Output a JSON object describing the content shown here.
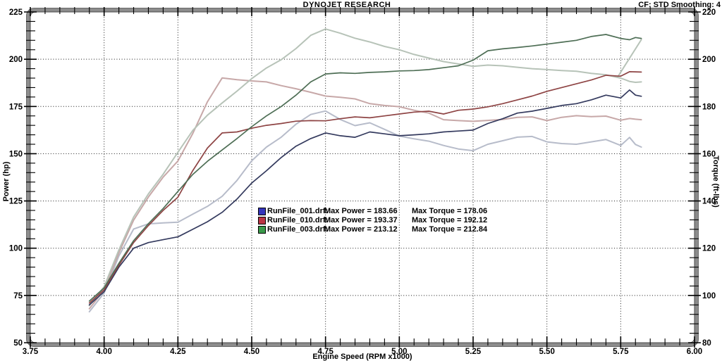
{
  "chart_data": {
    "type": "line",
    "title": "DYNOJET RESEARCH",
    "correction_label": "CF: STD  Smoothing: 4",
    "grid": "on",
    "legend_position": "inside-center",
    "x_axis": {
      "label": "Engine Speed (RPM x1000)",
      "min": 3.75,
      "max": 6.0,
      "minor_step": 0.05,
      "ticks": [
        3.75,
        4.0,
        4.25,
        4.5,
        4.75,
        5.0,
        5.25,
        5.5,
        5.75,
        6.0
      ],
      "tick_labels": [
        "3.75",
        "4.00",
        "4.25",
        "4.50",
        "4.75",
        "5.00",
        "5.25",
        "5.50",
        "5.75",
        "6.00"
      ]
    },
    "y_left": {
      "label": "Power (hp)",
      "min": 50,
      "max": 225,
      "minor_step": 5,
      "ticks": [
        225,
        200,
        175,
        150,
        125,
        100,
        75,
        50
      ],
      "tick_labels": [
        "225",
        "200",
        "175",
        "150",
        "125",
        "100",
        "75",
        "50"
      ]
    },
    "y_right": {
      "label": "Torque (ft-lbs)",
      "min": 80,
      "max": 220,
      "minor_step": 4,
      "ticks": [
        220,
        200,
        180,
        160,
        140,
        120,
        100,
        80
      ],
      "tick_labels": [
        "220",
        "200",
        "180",
        "160",
        "140",
        "120",
        "100",
        "80"
      ]
    },
    "rpm": [
      3.95,
      4.0,
      4.05,
      4.1,
      4.15,
      4.2,
      4.25,
      4.3,
      4.35,
      4.4,
      4.45,
      4.5,
      4.55,
      4.6,
      4.65,
      4.7,
      4.75,
      4.8,
      4.85,
      4.9,
      4.95,
      5.0,
      5.05,
      5.1,
      5.15,
      5.2,
      5.25,
      5.3,
      5.35,
      5.4,
      5.45,
      5.5,
      5.55,
      5.6,
      5.65,
      5.7,
      5.75,
      5.78,
      5.8,
      5.82
    ],
    "runs": [
      {
        "file_label": "RunFile_001.drf:",
        "power_label": "Max Power = 183.66",
        "torque_label": "Max Torque = 178.06",
        "max_power": 183.66,
        "max_torque": 178.06,
        "swatch": "#3434bb",
        "power_color": "#343a5e",
        "torque_color": "#b7bcca",
        "power": [
          70,
          77,
          90,
          100,
          103,
          104.5,
          106,
          110,
          114,
          119,
          126,
          134.5,
          141,
          148,
          154,
          158,
          161,
          159.5,
          158.7,
          161.5,
          160.5,
          159.5,
          160,
          160.5,
          161.5,
          162,
          162.5,
          166,
          168.5,
          171.5,
          172.5,
          174,
          175.5,
          176.5,
          178.5,
          181,
          179.5,
          183.7,
          181,
          180.4
        ],
        "torque": [
          93.1,
          101.1,
          116.7,
          128.1,
          130.3,
          130.7,
          131,
          134.4,
          137.7,
          142,
          148.7,
          157,
          162.8,
          167,
          172.5,
          176.6,
          178.1,
          174.5,
          171.9,
          173.1,
          170.3,
          167.5,
          166.3,
          165.3,
          163.5,
          162,
          161.3,
          164,
          165.5,
          167,
          167.3,
          165,
          164.3,
          164,
          165,
          166,
          163.5,
          166.9,
          163.9,
          162.8
        ]
      },
      {
        "file_label": "RunFile_010.drf:",
        "power_label": "Max Power = 193.37",
        "torque_label": "Max Torque = 192.12",
        "max_power": 193.37,
        "max_torque": 192.12,
        "swatch": "#bb3344",
        "power_color": "#8e4444",
        "torque_color": "#c7a8a8",
        "power": [
          71,
          78,
          91,
          103,
          112,
          120,
          127,
          141,
          153,
          161,
          161.5,
          163.5,
          165,
          166,
          167.2,
          167.5,
          167.4,
          168.5,
          169.5,
          169,
          170,
          171,
          172,
          172.5,
          171,
          173,
          173.6,
          174.8,
          176.5,
          178.5,
          180.5,
          183,
          185,
          187,
          189,
          191.5,
          191,
          193.4,
          193.3,
          193.2
        ],
        "torque": [
          94.4,
          102.4,
          118,
          131.9,
          141.7,
          150.1,
          156.9,
          168.5,
          182,
          192.1,
          191.3,
          190.8,
          190.4,
          188.8,
          187.5,
          186,
          184.4,
          183.9,
          183.2,
          181.2,
          180.4,
          179.9,
          178.4,
          177.2,
          174.4,
          174,
          173.7,
          174.1,
          174.5,
          175.4,
          175.6,
          174,
          175.4,
          176.1,
          175.7,
          175.9,
          174.2,
          174.9,
          174.6,
          174.4
        ]
      },
      {
        "file_label": "RunFile_003.drf:",
        "power_label": "Max Power = 213.12",
        "torque_label": "Max Torque = 212.84",
        "max_power": 213.12,
        "max_torque": 212.84,
        "swatch": "#3a9a4a",
        "power_color": "#4e6e55",
        "torque_color": "#b7c3b8",
        "power": [
          72,
          79,
          92,
          104,
          113,
          121,
          130,
          139,
          146,
          152,
          158,
          164.3,
          170,
          175,
          181,
          188,
          192.2,
          192.8,
          192.5,
          193,
          193.3,
          193.8,
          194,
          194.5,
          195.5,
          196.5,
          199.5,
          204.5,
          205.5,
          206.2,
          207,
          208,
          209,
          210,
          212,
          213.1,
          211,
          210.3,
          211.5,
          211
        ],
        "torque": [
          95.7,
          103.7,
          119.3,
          133.2,
          143,
          151.3,
          160.6,
          169.8,
          176.3,
          181.5,
          186.5,
          191.8,
          196.3,
          199.8,
          204.5,
          210.1,
          212.8,
          211,
          208.9,
          207.3,
          205.4,
          204,
          202,
          200.5,
          199,
          198,
          197,
          197.5,
          197.2,
          196.6,
          196,
          195.6,
          195.2,
          194.9,
          194,
          193.4,
          192,
          190.6,
          190.2,
          190.4
        ],
        "end_artifact": {
          "rpm": [
            5.74,
            5.82
          ],
          "torque": [
            192.5,
            208.3
          ]
        }
      }
    ],
    "style": {
      "grid_color": "#1a1a1a",
      "frame_color": "#8c8c8c",
      "frame_edge_color": "#4a4a4a",
      "tick_color": "#000000",
      "text_color": "#000000",
      "background": "#ffffff"
    }
  }
}
